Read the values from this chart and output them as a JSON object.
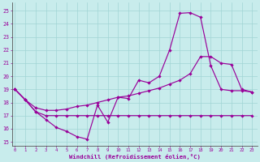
{
  "background_color": "#c8ecec",
  "grid_color": "#a0d4d4",
  "line_color": "#990099",
  "xlabel": "Windchill (Refroidissement éolien,°C)",
  "x": [
    0,
    1,
    2,
    3,
    4,
    5,
    6,
    7,
    8,
    9,
    10,
    11,
    12,
    13,
    14,
    15,
    16,
    17,
    18,
    19,
    20,
    21,
    22,
    23
  ],
  "line1_y": [
    19.0,
    18.2,
    17.3,
    16.7,
    16.1,
    15.8,
    15.4,
    15.2,
    17.8,
    16.5,
    18.4,
    18.3,
    19.7,
    19.5,
    20.0,
    22.0,
    24.8,
    24.85,
    24.5,
    20.8,
    19.0,
    18.9,
    18.9,
    18.8
  ],
  "line2_y": [
    19.0,
    18.2,
    17.3,
    17.0,
    17.0,
    17.0,
    17.0,
    17.0,
    17.0,
    17.0,
    17.0,
    17.0,
    17.0,
    17.0,
    17.0,
    17.0,
    17.0,
    17.0,
    17.0,
    17.0,
    17.0,
    17.0,
    17.0,
    17.0
  ],
  "line3_y": [
    19.0,
    18.2,
    17.6,
    17.4,
    17.4,
    17.5,
    17.7,
    17.8,
    18.0,
    18.2,
    18.4,
    18.5,
    18.7,
    18.9,
    19.1,
    19.4,
    19.7,
    20.2,
    21.5,
    21.5,
    21.0,
    20.9,
    19.0,
    18.8
  ],
  "yticks": [
    15,
    16,
    17,
    18,
    19,
    20,
    21,
    22,
    23,
    24,
    25
  ],
  "xticks": [
    0,
    1,
    2,
    3,
    4,
    5,
    6,
    7,
    8,
    9,
    10,
    11,
    12,
    13,
    14,
    15,
    16,
    17,
    18,
    19,
    20,
    21,
    22,
    23
  ],
  "ylim_bottom": 14.7,
  "ylim_top": 25.6,
  "xlim_left": -0.3,
  "xlim_right": 23.5
}
